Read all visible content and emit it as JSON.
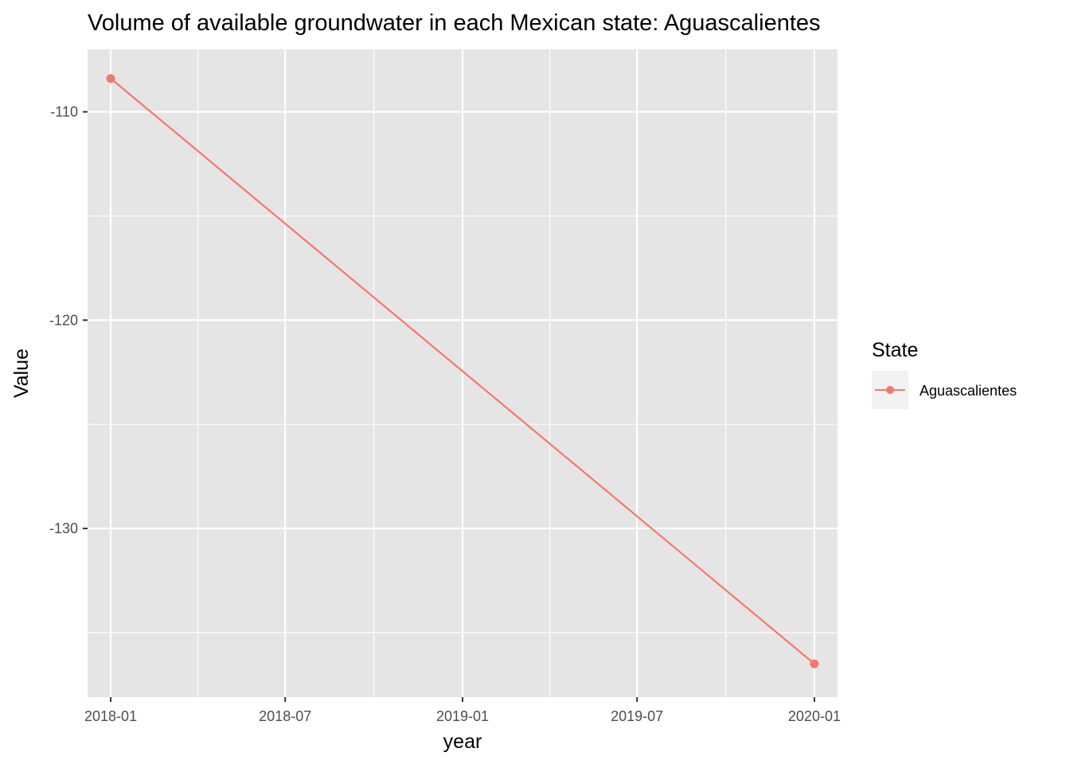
{
  "chart_data": {
    "type": "line",
    "title": "Volume of available groundwater in each Mexican state: Aguascalientes",
    "xlabel": "year",
    "ylabel": "Value",
    "x_ticks": [
      "2018-01",
      "2018-07",
      "2019-01",
      "2019-07",
      "2020-01"
    ],
    "y_ticks": [
      -110,
      -120,
      -130
    ],
    "x_range": [
      "2017-12-08",
      "2020-01-25"
    ],
    "ylim": [
      -138.1,
      -107.0
    ],
    "grid": true,
    "legend": {
      "title": "State",
      "placement": "right"
    },
    "series": [
      {
        "name": "Aguascalientes",
        "color": "#F8766D",
        "x": [
          "2018-01-01",
          "2020-01-01"
        ],
        "y": [
          -108.4,
          -136.5
        ]
      }
    ]
  }
}
